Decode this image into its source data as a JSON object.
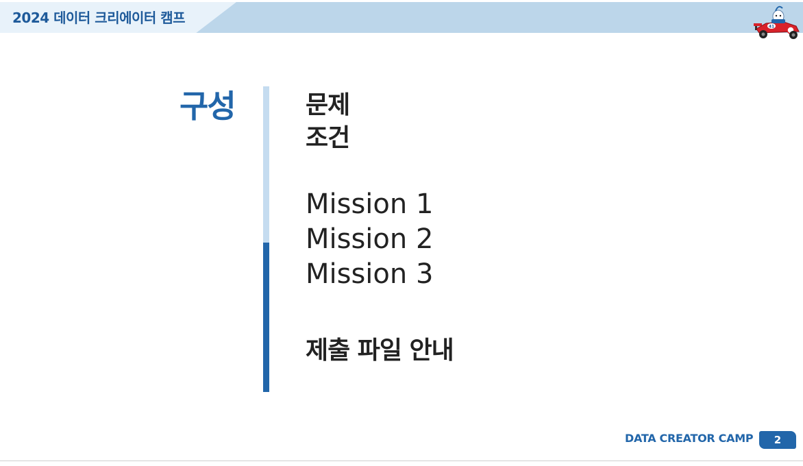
{
  "header": {
    "title": "2024 데이터 크리에이터 캠프",
    "mascot_icon": "race-car-mascot-icon"
  },
  "section": {
    "title": "구성"
  },
  "toc": {
    "items": [
      "문제",
      "조건",
      "Mission 1",
      "Mission 2",
      "Mission 3",
      "제출 파일 안내"
    ]
  },
  "footer": {
    "brand": "DATA CREATOR CAMP",
    "page_number": "2"
  },
  "colors": {
    "accent": "#2266aa",
    "accent_light": "#c5dcf0",
    "header_band": "#bcd6ea",
    "text": "#222222"
  }
}
